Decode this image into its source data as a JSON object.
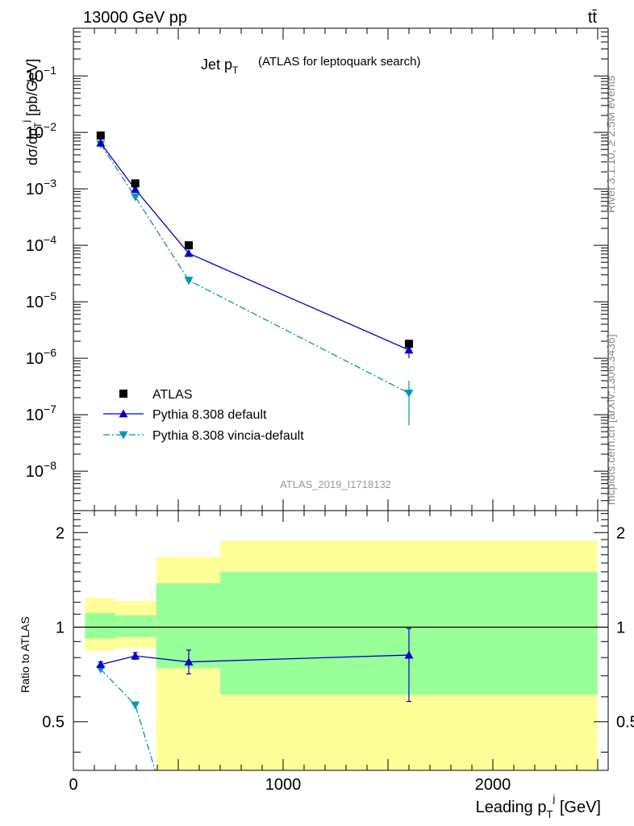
{
  "header": {
    "energy_label": "13000 GeV pp",
    "process_label": "tt̄"
  },
  "side_text": {
    "rivet": "Rivet 3.1.10, ≥ 2.5M events",
    "mcplots": "mcplots.cern.ch [arXiv:1306.3436]"
  },
  "watermark": "ATLAS_2019_I1718132",
  "colors": {
    "atlas": "#000000",
    "pythia_default": "#0000cc",
    "pythia_vincia": "#0097b8",
    "band_inner": "#99ff99",
    "band_outer": "#ffff99"
  },
  "chart_data": [
    {
      "type": "scatter",
      "panel": "main",
      "title": "Jet p_T",
      "subtitle": "(ATLAS for leptoquark search)",
      "ylabel": "dσ/dp_T^j [pb/GeV]",
      "yscale": "log",
      "ylim": [
        2e-09,
        0.7
      ],
      "xlim": [
        0,
        2550
      ],
      "ytick_labels": [
        "10^-8",
        "10^-7",
        "10^-6",
        "10^-5",
        "10^-4",
        "10^-3",
        "10^-2",
        "10^-1"
      ],
      "legend_position": "bottom-left",
      "series": [
        {
          "name": "ATLAS",
          "style": "square-markers",
          "color": "#000000",
          "x": [
            130,
            295,
            550,
            1600
          ],
          "y": [
            0.0088,
            0.00125,
            0.0001,
            1.8e-06
          ]
        },
        {
          "name": "Pythia 8.308 default",
          "style": "solid-line-triangle-up",
          "color": "#0000cc",
          "x": [
            130,
            295,
            550,
            1600
          ],
          "y": [
            0.0065,
            0.00098,
            7.2e-05,
            1.4e-06
          ],
          "err_lo": [
            0.0061,
            0.00093,
            6.8e-05,
            1e-06
          ],
          "err_hi": [
            0.0069,
            0.00103,
            7.6e-05,
            1.6e-06
          ]
        },
        {
          "name": "Pythia 8.308 vincia-default",
          "style": "dashdot-line-triangle-down",
          "color": "#0097b8",
          "x": [
            130,
            295,
            550,
            1600
          ],
          "y": [
            0.0062,
            0.00072,
            2.4e-05,
            2.4e-07
          ],
          "err_lo": [
            0.0058,
            0.00065,
            2e-05,
            6.5e-08
          ],
          "err_hi": [
            0.0066,
            0.00079,
            2.8e-05,
            4e-07
          ]
        }
      ]
    },
    {
      "type": "line",
      "panel": "ratio",
      "ylabel": "Ratio to ATLAS",
      "xlabel": "Leading p_T^j [GeV]",
      "yscale": "log",
      "ylim": [
        0.35,
        2.35
      ],
      "xlim": [
        0,
        2550
      ],
      "xtick_labels": [
        "0",
        "1000",
        "2000"
      ],
      "ytick_labels": [
        "0.5",
        "1",
        "2"
      ],
      "reference_line": 1,
      "bands": [
        {
          "xmin": 55,
          "xmax": 200,
          "inner": [
            0.92,
            1.11
          ],
          "outer": [
            0.84,
            1.24
          ]
        },
        {
          "xmin": 200,
          "xmax": 395,
          "inner": [
            0.93,
            1.09
          ],
          "outer": [
            0.86,
            1.21
          ]
        },
        {
          "xmin": 395,
          "xmax": 700,
          "inner": [
            0.74,
            1.38
          ],
          "outer": [
            0.3,
            1.67
          ]
        },
        {
          "xmin": 700,
          "xmax": 2500,
          "inner": [
            0.61,
            1.5
          ],
          "outer": [
            0.3,
            1.88
          ]
        }
      ],
      "series": [
        {
          "name": "Pythia 8.308 default",
          "color": "#0000cc",
          "x": [
            130,
            295,
            550,
            1600
          ],
          "y": [
            0.76,
            0.81,
            0.775,
            0.815
          ],
          "err_lo": [
            0.745,
            0.79,
            0.71,
            0.58
          ],
          "err_hi": [
            0.775,
            0.83,
            0.845,
            0.99
          ]
        },
        {
          "name": "Pythia 8.308 vincia-default",
          "color": "#0097b8",
          "x": [
            130,
            295,
            390
          ],
          "y": [
            0.735,
            0.565,
            0.35
          ],
          "err_lo": [
            0.72,
            0.555,
            0.35
          ],
          "err_hi": [
            0.75,
            0.575,
            0.35
          ]
        }
      ]
    }
  ]
}
